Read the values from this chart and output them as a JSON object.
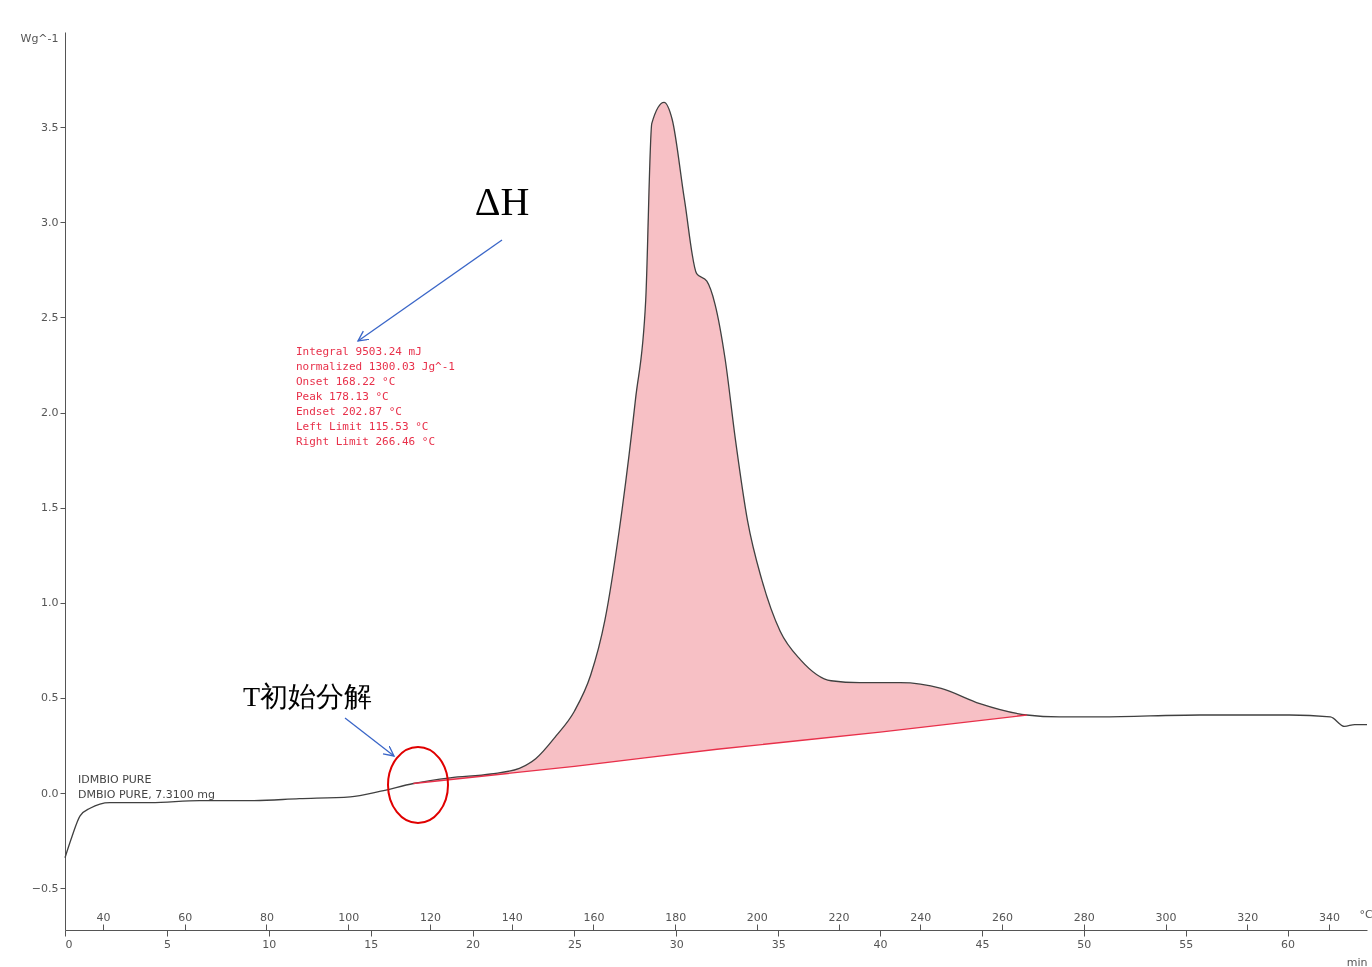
{
  "chart_data": {
    "type": "line",
    "xlabel": "min",
    "x2label": "°C",
    "ylabel": "Wg^-1",
    "xlim": [
      0,
      63.9
    ],
    "xticks": [
      0,
      5,
      10,
      15,
      20,
      25,
      30,
      35,
      40,
      45,
      50,
      55,
      60
    ],
    "x2lim": [
      30.7,
      349.3
    ],
    "x2ticks": [
      40,
      60,
      80,
      100,
      120,
      140,
      160,
      180,
      200,
      220,
      240,
      260,
      280,
      300,
      320,
      340
    ],
    "ylim": [
      -0.72,
      4.0
    ],
    "yticks": [
      -0.5,
      {
        "value": 0,
        "label": "0.0"
      },
      0.5,
      {
        "value": 1,
        "label": "1.0"
      },
      1.5,
      {
        "value": 2,
        "label": "2.0"
      },
      2.5,
      {
        "value": 3,
        "label": "3.0"
      },
      3.5
    ],
    "grid": false,
    "series": [
      {
        "type": "line",
        "color": "#404040",
        "x": [
          0,
          0.34,
          0.74,
          1.23,
          2.2,
          4.2,
          6.6,
          9.1,
          11.5,
          14.0,
          15.5,
          17.1,
          18.9,
          20.9,
          22.3,
          23.1,
          24.1,
          25.0,
          25.8,
          26.5,
          27.2,
          28.0,
          28.5,
          28.8,
          29.4,
          29.8,
          30.4,
          31.0,
          31.5,
          31.9,
          32.4,
          32.9,
          33.5,
          34.2,
          35.1,
          36.1,
          37.6,
          39.0,
          41.0,
          43.0,
          44.9,
          47.2,
          48.8,
          50.8,
          55.7,
          60.1,
          62.1,
          62.8,
          63.3,
          63.9
        ],
        "values": [
          -0.34,
          -0.23,
          -0.12,
          -0.08,
          -0.05,
          -0.05,
          -0.04,
          -0.04,
          -0.03,
          -0.02,
          0.01,
          0.05,
          0.08,
          0.1,
          0.13,
          0.18,
          0.3,
          0.43,
          0.62,
          0.91,
          1.38,
          2.07,
          2.59,
          3.52,
          3.63,
          3.54,
          3.12,
          2.73,
          2.69,
          2.57,
          2.28,
          1.86,
          1.43,
          1.12,
          0.85,
          0.7,
          0.59,
          0.58,
          0.58,
          0.55,
          0.47,
          0.41,
          0.4,
          0.4,
          0.41,
          0.41,
          0.4,
          0.35,
          0.36,
          0.36
        ]
      },
      {
        "type": "area",
        "color": "#f08c96",
        "x": [
          17.1,
          18.9,
          20.9,
          22.3,
          23.1,
          24.1,
          25.0,
          25.8,
          26.5,
          27.2,
          28.0,
          28.5,
          28.8,
          29.4,
          29.8,
          30.4,
          31.0,
          31.5,
          31.9,
          32.4,
          32.9,
          33.5,
          34.2,
          35.1,
          36.1,
          37.6,
          39.0,
          41.0,
          43.0,
          44.9,
          47.2
        ],
        "values": [
          0.05,
          0.08,
          0.1,
          0.13,
          0.18,
          0.3,
          0.43,
          0.62,
          0.91,
          1.38,
          2.07,
          2.59,
          3.52,
          3.63,
          3.54,
          3.12,
          2.73,
          2.69,
          2.57,
          2.28,
          1.86,
          1.43,
          1.12,
          0.85,
          0.7,
          0.59,
          0.58,
          0.58,
          0.55,
          0.47,
          0.41
        ]
      },
      {
        "color": "#e8304a",
        "x": [
          17.1,
          25,
          32,
          40,
          47.2
        ],
        "values": [
          0.05,
          0.14,
          0.23,
          0.32,
          0.41
        ]
      }
    ],
    "annotations": [
      "ΔH",
      "T初始分解",
      "Integral      9503.24 mJ",
      "  normalized   1300.03 Jg^-1",
      "Onset          168.22 °C",
      "Peak           178.13 °C",
      "Endset         202.87 °C",
      "Left Limit     115.53 °C",
      "Right Limit    266.46 °C",
      "IDMBIO  PURE",
      "DMBIO  PURE, 7.3100 mg"
    ]
  }
}
